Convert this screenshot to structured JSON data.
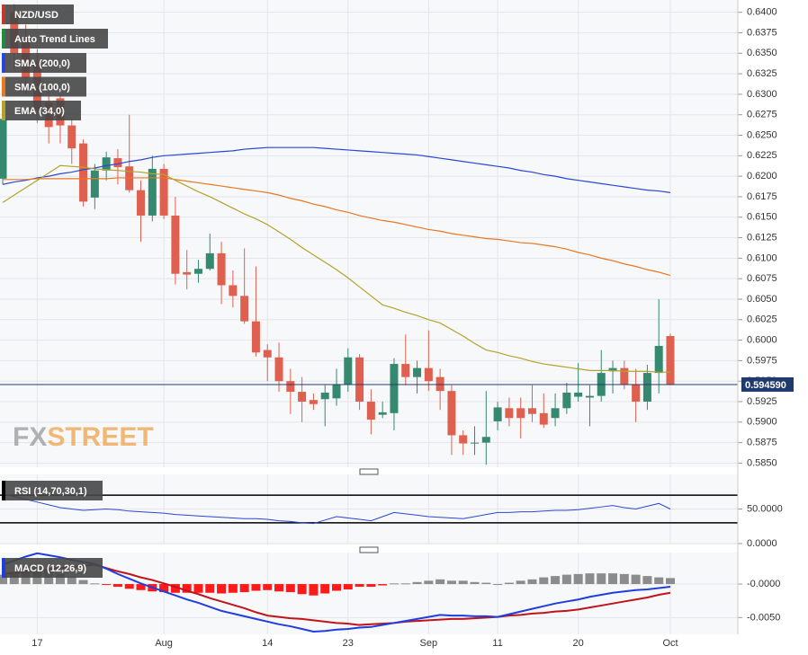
{
  "chart_data": {
    "type": "candlestick",
    "title": "NZD/USD",
    "title_color": "#c0392b",
    "trend_label": "Auto Trend Lines",
    "trend_color": "#1e8c3a",
    "categories": [
      null,
      null,
      null,
      "17",
      null,
      null,
      null,
      null,
      null,
      null,
      null,
      null,
      null,
      null,
      "Aug",
      null,
      null,
      null,
      null,
      null,
      null,
      null,
      null,
      "14",
      null,
      null,
      null,
      null,
      null,
      null,
      "23",
      null,
      null,
      null,
      null,
      null,
      null,
      "Sep",
      null,
      null,
      null,
      null,
      null,
      "11",
      null,
      null,
      null,
      null,
      null,
      null,
      "20",
      null,
      null,
      null,
      null,
      null,
      null,
      null,
      "Oct"
    ],
    "candles": {
      "up_color": "#35896f",
      "down_color": "#e0604f",
      "open": [
        0.6197,
        0.64,
        0.637,
        0.634,
        0.629,
        0.6295,
        0.6262,
        0.624,
        0.6174,
        0.6207,
        0.6222,
        0.6212,
        0.6183,
        0.6152,
        0.6209,
        0.6152,
        0.6083,
        0.6081,
        0.6087,
        0.6106,
        0.6067,
        0.6054,
        0.6023,
        0.5988,
        0.5979,
        0.595,
        0.5937,
        0.5927,
        0.5928,
        0.5929,
        0.5946,
        0.5979,
        0.5925,
        0.5909,
        0.5911,
        0.5971,
        0.5955,
        0.5966,
        0.5955,
        0.5938,
        0.5884,
        0.5874,
        0.5875,
        0.5901,
        0.5917,
        0.5917,
        0.5917,
        0.5911,
        0.5905,
        0.5917,
        0.5931,
        0.593,
        0.5932,
        0.5962,
        0.5966,
        0.5946,
        0.5925,
        0.596,
        0.6005
      ],
      "high": [
        0.628,
        0.641,
        0.6385,
        0.6355,
        0.631,
        0.63,
        0.627,
        0.6245,
        0.6215,
        0.623,
        0.6233,
        0.6275,
        0.6195,
        0.6225,
        0.6215,
        0.6175,
        0.611,
        0.6098,
        0.613,
        0.612,
        0.6085,
        0.6112,
        0.609,
        0.5995,
        0.5997,
        0.5965,
        0.5955,
        0.5935,
        0.5945,
        0.5965,
        0.599,
        0.5983,
        0.594,
        0.5925,
        0.5978,
        0.6007,
        0.5975,
        0.6012,
        0.5965,
        0.5945,
        0.589,
        0.5895,
        0.5938,
        0.5925,
        0.593,
        0.593,
        0.5945,
        0.5935,
        0.5935,
        0.5948,
        0.5972,
        0.5945,
        0.5988,
        0.5975,
        0.5975,
        0.5965,
        0.597,
        0.605,
        0.6008
      ],
      "low": [
        0.619,
        0.633,
        0.63,
        0.6265,
        0.624,
        0.624,
        0.6215,
        0.6163,
        0.616,
        0.6195,
        0.619,
        0.618,
        0.612,
        0.6145,
        0.6148,
        0.6068,
        0.6062,
        0.607,
        0.6085,
        0.6044,
        0.604,
        0.602,
        0.598,
        0.595,
        0.5937,
        0.591,
        0.59,
        0.5915,
        0.5895,
        0.592,
        0.5937,
        0.5915,
        0.5885,
        0.5905,
        0.589,
        0.5945,
        0.5935,
        0.5938,
        0.5915,
        0.586,
        0.586,
        0.586,
        0.5848,
        0.589,
        0.5895,
        0.588,
        0.59,
        0.5893,
        0.5895,
        0.591,
        0.5925,
        0.5895,
        0.5925,
        0.5935,
        0.594,
        0.59,
        0.5915,
        0.5935,
        0.5945
      ],
      "close": [
        0.627,
        0.635,
        0.632,
        0.628,
        0.626,
        0.6262,
        0.6234,
        0.6169,
        0.6207,
        0.6223,
        0.6211,
        0.6183,
        0.6152,
        0.6209,
        0.6152,
        0.6081,
        0.608,
        0.6087,
        0.6106,
        0.6067,
        0.6054,
        0.6023,
        0.5985,
        0.5979,
        0.595,
        0.5937,
        0.5925,
        0.5922,
        0.5936,
        0.5946,
        0.5979,
        0.5925,
        0.5903,
        0.5912,
        0.5971,
        0.5955,
        0.5966,
        0.595,
        0.5938,
        0.5884,
        0.5874,
        0.5875,
        0.5882,
        0.5918,
        0.5905,
        0.5905,
        0.591,
        0.5897,
        0.5917,
        0.5936,
        0.5936,
        0.5932,
        0.596,
        0.5966,
        0.5946,
        0.5925,
        0.596,
        0.5993,
        0.5946
      ]
    },
    "overlays": [
      {
        "name": "SMA (200,0)",
        "color": "#2a46d6",
        "values": [
          0.619,
          0.6193,
          0.6195,
          0.6198,
          0.62,
          0.6203,
          0.6205,
          0.6208,
          0.621,
          0.6213,
          0.6215,
          0.6218,
          0.622,
          0.6223,
          0.6225,
          0.6226,
          0.6227,
          0.6228,
          0.6229,
          0.623,
          0.6231,
          0.6233,
          0.6234,
          0.6235,
          0.6235,
          0.6235,
          0.6235,
          0.6235,
          0.6234,
          0.6233,
          0.6232,
          0.6231,
          0.623,
          0.6229,
          0.6228,
          0.6227,
          0.6226,
          0.6224,
          0.6222,
          0.622,
          0.6218,
          0.6216,
          0.6214,
          0.6212,
          0.621,
          0.6207,
          0.6205,
          0.6202,
          0.62,
          0.6197,
          0.6195,
          0.6193,
          0.6191,
          0.6189,
          0.6187,
          0.6185,
          0.6183,
          0.6182,
          0.618
        ]
      },
      {
        "name": "SMA (100,0)",
        "color": "#e87722",
        "values": [
          0.6196,
          0.6196,
          0.6196,
          0.6197,
          0.6197,
          0.6197,
          0.6197,
          0.6197,
          0.6197,
          0.6197,
          0.6198,
          0.6198,
          0.6198,
          0.6198,
          0.6198,
          0.6196,
          0.6194,
          0.6192,
          0.619,
          0.6188,
          0.6186,
          0.6184,
          0.6182,
          0.618,
          0.6177,
          0.6173,
          0.617,
          0.6166,
          0.6163,
          0.6159,
          0.6156,
          0.6152,
          0.6149,
          0.6146,
          0.6144,
          0.6141,
          0.6138,
          0.6135,
          0.6133,
          0.613,
          0.6128,
          0.6126,
          0.6124,
          0.6123,
          0.6121,
          0.6119,
          0.6118,
          0.6116,
          0.6114,
          0.6111,
          0.6107,
          0.6104,
          0.61,
          0.6097,
          0.6093,
          0.609,
          0.6086,
          0.6083,
          0.6079
        ]
      },
      {
        "name": "EMA (34,0)",
        "color": "#b5a22a",
        "values": [
          0.6168,
          0.6177,
          0.6186,
          0.6195,
          0.6204,
          0.6213,
          0.6212,
          0.6211,
          0.6209,
          0.6208,
          0.6207,
          0.6206,
          0.6205,
          0.6203,
          0.6202,
          0.6195,
          0.6188,
          0.6181,
          0.6175,
          0.6168,
          0.6161,
          0.6154,
          0.6148,
          0.6141,
          0.6132,
          0.6123,
          0.6113,
          0.6104,
          0.6095,
          0.6086,
          0.6076,
          0.6065,
          0.6054,
          0.6043,
          0.6039,
          0.6034,
          0.603,
          0.6025,
          0.6021,
          0.6013,
          0.6005,
          0.5996,
          0.5988,
          0.5985,
          0.5981,
          0.5978,
          0.5974,
          0.5971,
          0.5969,
          0.5967,
          0.5965,
          0.5963,
          0.5963,
          0.5963,
          0.5962,
          0.5962,
          0.5962,
          0.5961,
          0.5961
        ]
      }
    ],
    "ylim": [
      0.5845,
      0.6415
    ],
    "yticks": [
      {
        "value": 0.585,
        "label": "0.5850"
      },
      {
        "value": 0.5875,
        "label": "0.5875"
      },
      {
        "value": 0.59,
        "label": "0.5900"
      },
      {
        "value": 0.5925,
        "label": "0.5925"
      },
      {
        "value": 0.595,
        "label": "0.5950"
      },
      {
        "value": 0.5975,
        "label": "0.5975"
      },
      {
        "value": 0.6,
        "label": "0.6000"
      },
      {
        "value": 0.6025,
        "label": "0.6025"
      },
      {
        "value": 0.605,
        "label": "0.6050"
      },
      {
        "value": 0.6075,
        "label": "0.6075"
      },
      {
        "value": 0.61,
        "label": "0.6100"
      },
      {
        "value": 0.6125,
        "label": "0.6125"
      },
      {
        "value": 0.615,
        "label": "0.6150"
      },
      {
        "value": 0.6175,
        "label": "0.6175"
      },
      {
        "value": 0.62,
        "label": "0.6200"
      },
      {
        "value": 0.6225,
        "label": "0.6225"
      },
      {
        "value": 0.625,
        "label": "0.6250"
      },
      {
        "value": 0.6275,
        "label": "0.6275"
      },
      {
        "value": 0.63,
        "label": "0.6300"
      },
      {
        "value": 0.6325,
        "label": "0.6325"
      },
      {
        "value": 0.635,
        "label": "0.6350"
      },
      {
        "value": 0.6375,
        "label": "0.6375"
      },
      {
        "value": 0.64,
        "label": "0.6400"
      }
    ],
    "grid": true,
    "last_price": {
      "value": 0.59459,
      "label": "0.594590",
      "color": "#1f3a6e"
    },
    "watermark": {
      "left": "FX",
      "right": "STREET"
    },
    "rsi": {
      "title": "RSI (14,70,30,1)",
      "color": "#2a46d6",
      "values": [
        72,
        68,
        64,
        60,
        56,
        52,
        50,
        48,
        49,
        50,
        49,
        47,
        46,
        45,
        44,
        42,
        41,
        40,
        39,
        38,
        37,
        36,
        36,
        35,
        33,
        32,
        30,
        29,
        34,
        39,
        37,
        35,
        33,
        39,
        45,
        43,
        41,
        39,
        38,
        37,
        36,
        39,
        42,
        45,
        45,
        46,
        46,
        47,
        48,
        48,
        49,
        51,
        53,
        55,
        52,
        50,
        54,
        58,
        50
      ],
      "levels": [
        70,
        30
      ],
      "ylim": [
        0,
        100
      ],
      "yticks": [
        {
          "value": 50,
          "label": "50.0000"
        },
        {
          "value": 0,
          "label": "0.0000"
        }
      ]
    },
    "macd": {
      "title": "MACD (12,26,9)",
      "macd": {
        "color": "#1f3ee0",
        "values": [
          0.0029,
          0.0035,
          0.0041,
          0.0046,
          0.0043,
          0.004,
          0.0036,
          0.0033,
          0.003,
          0.0023,
          0.0015,
          0.0008,
          0.0001,
          -0.0005,
          -0.0011,
          -0.0017,
          -0.0023,
          -0.0028,
          -0.0034,
          -0.004,
          -0.0044,
          -0.0048,
          -0.0052,
          -0.0056,
          -0.006,
          -0.0063,
          -0.0067,
          -0.0071,
          -0.007,
          -0.0068,
          -0.0067,
          -0.0065,
          -0.0064,
          -0.0061,
          -0.0058,
          -0.0055,
          -0.0052,
          -0.0049,
          -0.0046,
          -0.0047,
          -0.0047,
          -0.0048,
          -0.0048,
          -0.0049,
          -0.0045,
          -0.0041,
          -0.0037,
          -0.0033,
          -0.0029,
          -0.0026,
          -0.0023,
          -0.0019,
          -0.0016,
          -0.0013,
          -0.0011,
          -0.0009,
          -0.0008,
          -0.0006,
          -0.0004
        ]
      },
      "signal": {
        "color": "#c0141a",
        "values": [
          0.0015,
          0.0017,
          0.0018,
          0.002,
          0.0022,
          0.0024,
          0.0025,
          0.0027,
          0.0029,
          0.0024,
          0.0019,
          0.0015,
          0.001,
          0.0006,
          0.0001,
          -0.0004,
          -0.001,
          -0.0015,
          -0.0021,
          -0.0026,
          -0.0031,
          -0.0036,
          -0.0042,
          -0.0047,
          -0.0049,
          -0.0051,
          -0.0052,
          -0.0054,
          -0.0056,
          -0.0058,
          -0.0059,
          -0.0061,
          -0.006,
          -0.0059,
          -0.0058,
          -0.0056,
          -0.0055,
          -0.0054,
          -0.0053,
          -0.0052,
          -0.0052,
          -0.0051,
          -0.005,
          -0.0049,
          -0.0047,
          -0.0046,
          -0.0044,
          -0.0043,
          -0.0041,
          -0.004,
          -0.0038,
          -0.0035,
          -0.0032,
          -0.0029,
          -0.0026,
          -0.0023,
          -0.002,
          -0.0016,
          -0.0013
        ]
      },
      "histogram": {
        "positive_color": "#8c8c8c",
        "negative_color": "#ff1a1a",
        "values": [
          0.0014,
          0.0018,
          0.0023,
          0.0026,
          0.0021,
          0.0016,
          0.0011,
          0.0006,
          0.0001,
          -0.0001,
          -0.0004,
          -0.0007,
          -0.0009,
          -0.0011,
          -0.0012,
          -0.0013,
          -0.0013,
          -0.0013,
          -0.0013,
          -0.0014,
          -0.0013,
          -0.0012,
          -0.001,
          -0.0009,
          -0.0011,
          -0.0012,
          -0.0015,
          -0.0017,
          -0.0014,
          -0.001,
          -0.0008,
          -0.0004,
          -0.0004,
          -0.0002,
          0.0001,
          0.0001,
          0.0003,
          0.0005,
          0.0007,
          0.0005,
          0.0005,
          0.0003,
          0.0002,
          0,
          0.0002,
          0.0005,
          0.0007,
          0.001,
          0.0012,
          0.0014,
          0.0015,
          0.0016,
          0.0016,
          0.0016,
          0.0015,
          0.0014,
          0.0012,
          0.001,
          0.0009
        ]
      },
      "ylim": [
        -0.0075,
        0.0047
      ],
      "yticks": [
        {
          "value": 0,
          "label": "-0.0000"
        },
        {
          "value": -0.005,
          "label": "-0.0050"
        }
      ]
    }
  }
}
